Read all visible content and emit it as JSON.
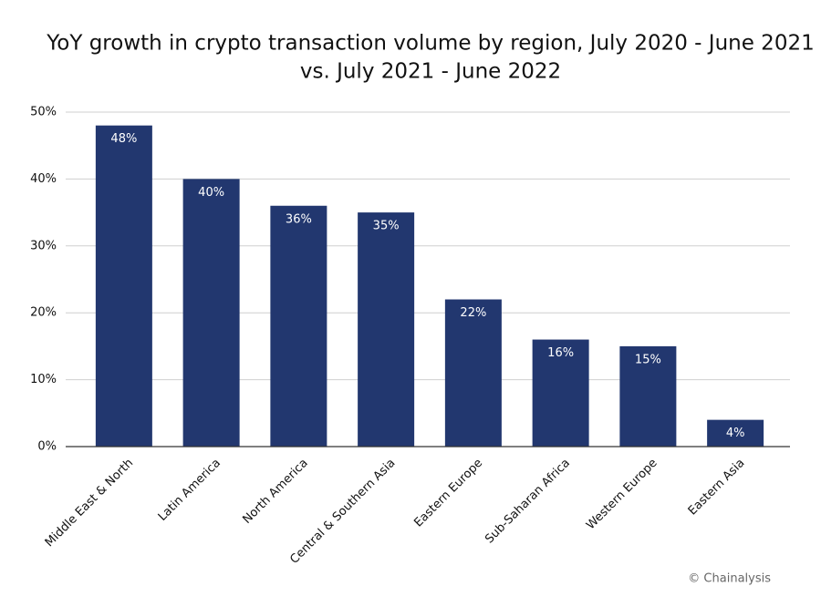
{
  "chart_data": {
    "type": "bar",
    "title": [
      "YoY growth in crypto transaction volume by region, July 2020 - June 2021",
      "vs. July 2021 - June 2022"
    ],
    "categories": [
      "Middle East & North",
      "Latin America",
      "North America",
      "Central & Southern Asia",
      "Eastern Europe",
      "Sub-Saharan Africa",
      "Western Europe",
      "Eastern Asia"
    ],
    "values": [
      48,
      40,
      36,
      35,
      22,
      16,
      15,
      4
    ],
    "value_labels": [
      "48%",
      "40%",
      "36%",
      "35%",
      "22%",
      "16%",
      "15%",
      "4%"
    ],
    "color": "#22376f",
    "ylim": [
      0,
      50
    ],
    "yticks": [
      {
        "value": 0,
        "label": "0%"
      },
      {
        "value": 10,
        "label": "10%"
      },
      {
        "value": 20,
        "label": "20%"
      },
      {
        "value": 30,
        "label": "30%"
      },
      {
        "value": 40,
        "label": "40%"
      },
      {
        "value": 50,
        "label": "50%"
      }
    ],
    "grid": true,
    "source": "© Chainalysis"
  }
}
